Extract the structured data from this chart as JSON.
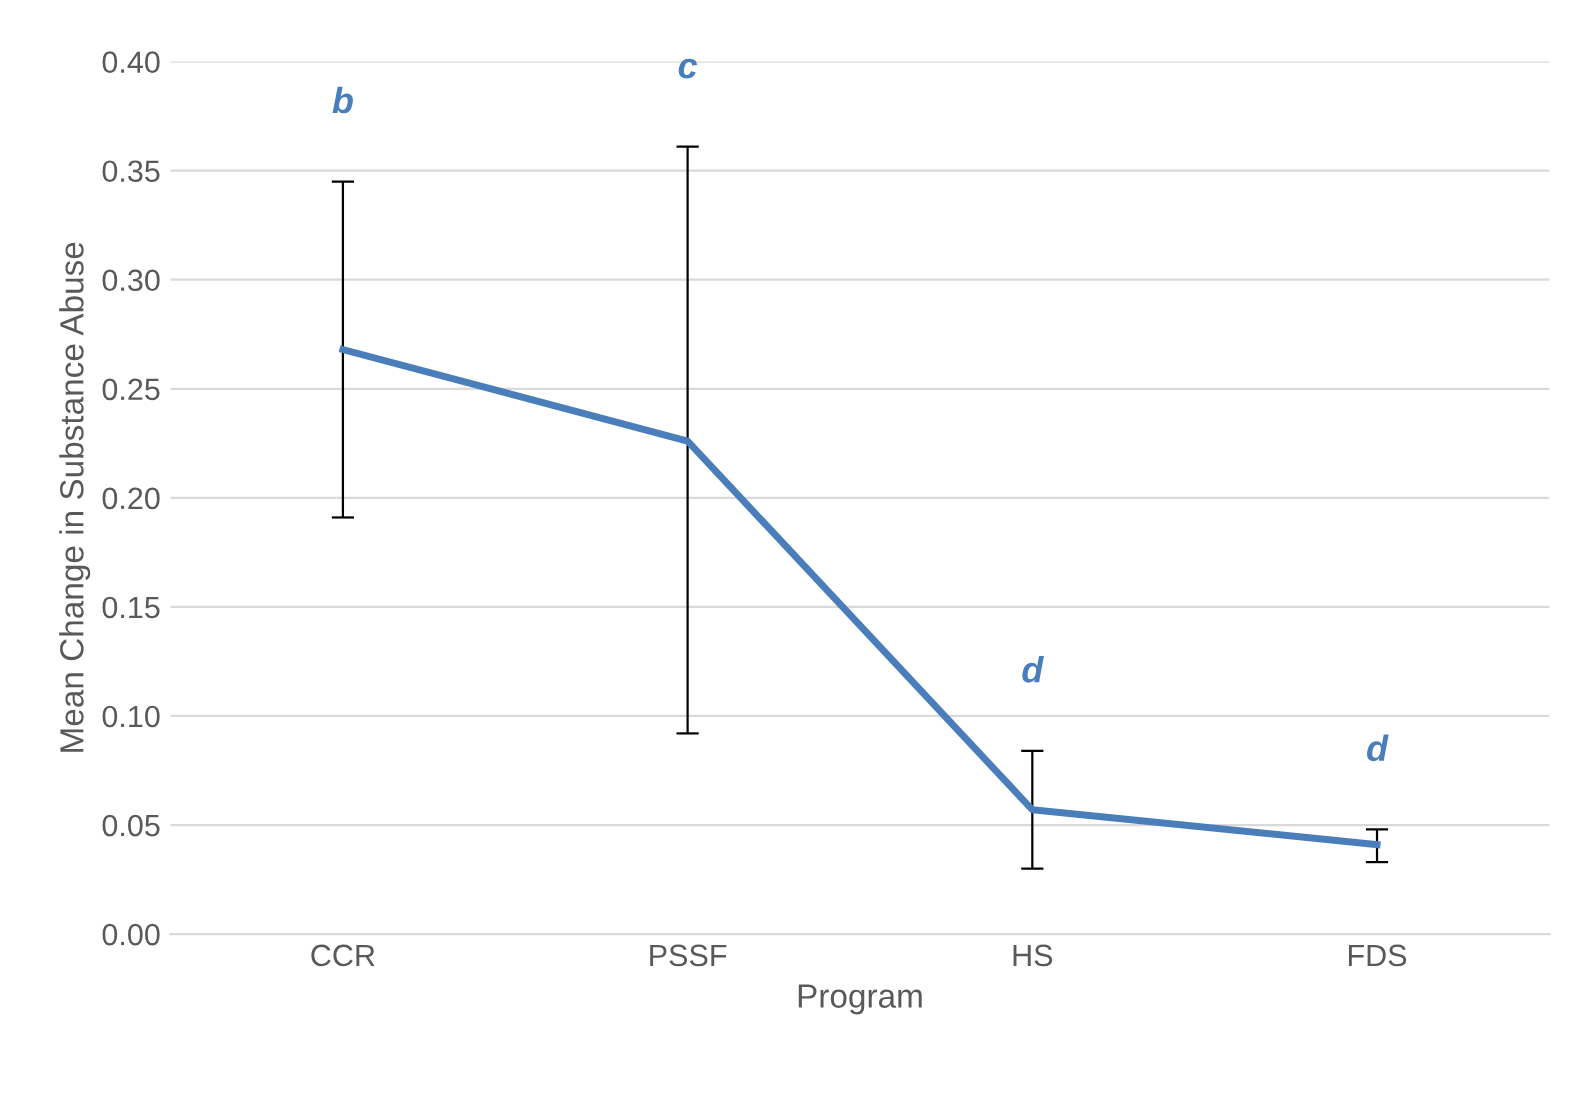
{
  "chart_data": {
    "type": "line",
    "xlabel": "Program",
    "ylabel": "Mean Change in Substance Abuse",
    "categories": [
      "CCR",
      "PSSF",
      "HS",
      "FDS"
    ],
    "series": [
      {
        "color": "#4a7ebb",
        "values": [
          0.268,
          0.226,
          0.057,
          0.041
        ],
        "errors": [
          [
            0.191,
            0.345
          ],
          [
            0.092,
            0.361
          ],
          [
            0.03,
            0.084
          ],
          [
            0.033,
            0.048
          ]
        ]
      }
    ],
    "ylim": [
      0,
      0.4
    ],
    "yticks": [
      {
        "value": 0,
        "label": "0.00"
      },
      {
        "value": 0.05,
        "label": "0.05"
      },
      {
        "value": 0.1,
        "label": "0.10"
      },
      {
        "value": 0.15,
        "label": "0.15"
      },
      {
        "value": 0.2,
        "label": "0.20"
      },
      {
        "value": 0.25,
        "label": "0.25"
      },
      {
        "value": 0.3,
        "label": "0.30"
      },
      {
        "value": 0.35,
        "label": "0.35"
      },
      {
        "value": 0.4,
        "label": "0.40"
      }
    ],
    "grid": "y",
    "marker": "none",
    "line_style": "solid",
    "annotations": [
      "b",
      "c",
      "d",
      "d"
    ]
  }
}
